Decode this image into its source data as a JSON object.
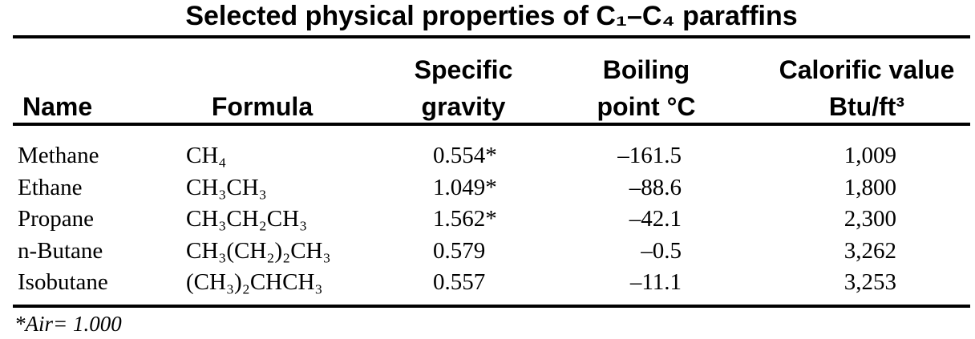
{
  "title": "Selected physical properties of C₁–C₄ paraffins",
  "footnote": "*Air= 1.000",
  "colors": {
    "text": "#000000",
    "background": "#ffffff",
    "rule": "#000000"
  },
  "table": {
    "columns": [
      {
        "key": "name",
        "label": "Name"
      },
      {
        "key": "formula",
        "label": "Formula"
      },
      {
        "key": "specific_gravity",
        "label_line1": "Specific",
        "label_line2": "gravity"
      },
      {
        "key": "boiling_point",
        "label_line1": "Boiling",
        "label_line2": "point °C"
      },
      {
        "key": "calorific_value",
        "label_line1": "Calorific value",
        "label_line2": "Btu/ft³"
      }
    ],
    "rows": [
      {
        "name": "Methane",
        "formula": "CH₄",
        "specific_gravity": "0.554*",
        "boiling_point": "–161.5",
        "calorific_value": "1,009"
      },
      {
        "name": "Ethane",
        "formula": "CH₃CH₃",
        "specific_gravity": "1.049*",
        "boiling_point": "–88.6",
        "calorific_value": "1,800"
      },
      {
        "name": "Propane",
        "formula": "CH₃CH₂CH₃",
        "specific_gravity": "1.562*",
        "boiling_point": "–42.1",
        "calorific_value": "2,300"
      },
      {
        "name": "n-Butane",
        "formula": "CH₃(CH₂)₂CH₃",
        "specific_gravity": "0.579",
        "boiling_point": "–0.5",
        "calorific_value": "3,262"
      },
      {
        "name": "Isobutane",
        "formula": "(CH₃)₂CHCH₃",
        "specific_gravity": "0.557",
        "boiling_point": "–11.1",
        "calorific_value": "3,253"
      }
    ]
  }
}
